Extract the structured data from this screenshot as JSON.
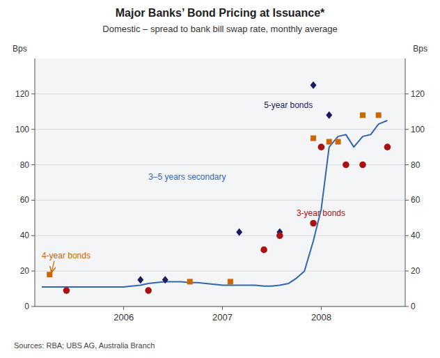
{
  "chart_data": {
    "type": "line",
    "title": "Major Banks’ Bond Pricing at Issuance*",
    "subtitle": "Domestic – spread to bank bill swap rate, monthly average",
    "ylabel": "Bps",
    "y2label": "Bps",
    "source": "Sources: RBA; UBS AG, Australia Branch",
    "xlim": [
      2005.1,
      2008.85
    ],
    "xticks": [
      2006,
      2007,
      2008
    ],
    "ylim": [
      0,
      140
    ],
    "yticks": [
      0,
      20,
      40,
      60,
      80,
      100,
      120
    ],
    "y2lim": [
      0,
      140
    ],
    "y2ticks": [
      0,
      20,
      40,
      60,
      80,
      100,
      120
    ],
    "grid": true,
    "series": [
      {
        "type": "line",
        "color": "#3366aa",
        "x": [
          2005.17,
          2005.25,
          2005.33,
          2005.42,
          2005.5,
          2005.58,
          2005.67,
          2005.75,
          2005.83,
          2005.92,
          2006.0,
          2006.08,
          2006.17,
          2006.25,
          2006.33,
          2006.42,
          2006.5,
          2006.58,
          2006.67,
          2006.75,
          2006.83,
          2006.92,
          2007.0,
          2007.08,
          2007.17,
          2007.25,
          2007.33,
          2007.42,
          2007.5,
          2007.58,
          2007.67,
          2007.75,
          2007.83,
          2007.92,
          2008.0,
          2008.08,
          2008.17,
          2008.25,
          2008.33,
          2008.42,
          2008.5,
          2008.58,
          2008.67
        ],
        "values": [
          11,
          11,
          11,
          11,
          11,
          11,
          11,
          11,
          11,
          11,
          11,
          11.5,
          12,
          13,
          13.5,
          14,
          14,
          14,
          13.5,
          13.5,
          13,
          12.5,
          12,
          12,
          12,
          12,
          12,
          11.5,
          11.5,
          12,
          13,
          16,
          20,
          37,
          55,
          90,
          96,
          97,
          90,
          96,
          97,
          103,
          105
        ]
      },
      {
        "type": "scatter",
        "color": "#1a1a5e",
        "marker": "diamond",
        "x": [
          2006.17,
          2006.42,
          2007.17,
          2007.58,
          2007.92,
          2008.08
        ],
        "values": [
          15,
          15,
          42,
          42,
          125,
          108
        ]
      },
      {
        "type": "scatter",
        "color": "#aa1111",
        "marker": "circle",
        "x": [
          2005.42,
          2006.25,
          2007.42,
          2007.58,
          2007.92,
          2008.0,
          2008.25,
          2008.42,
          2008.67
        ],
        "values": [
          9,
          9,
          32,
          40,
          47,
          90,
          80,
          80,
          90
        ]
      },
      {
        "type": "scatter",
        "color": "#cc6600",
        "marker": "square",
        "x": [
          2005.25,
          2006.67,
          2007.08,
          2007.92,
          2008.08,
          2008.17,
          2008.42,
          2008.58
        ],
        "values": [
          18,
          14,
          14,
          95,
          93,
          93,
          108,
          108
        ]
      }
    ],
    "annotations": [
      {
        "text": "5-year bonds",
        "x": 2007.42,
        "y": 111,
        "color": "#1a1a5e"
      },
      {
        "text": "3-year bonds",
        "x": 2007.75,
        "y": 50,
        "color": "#aa1111"
      },
      {
        "text": "3–5 years secondary",
        "x": 2006.25,
        "y": 73,
        "color": "#3366aa"
      },
      {
        "text": "4-year bonds",
        "x": 2005.17,
        "y": 26,
        "color": "#cc6600",
        "arrow_x": 2005.27,
        "arrow_y": 19.5
      }
    ]
  }
}
